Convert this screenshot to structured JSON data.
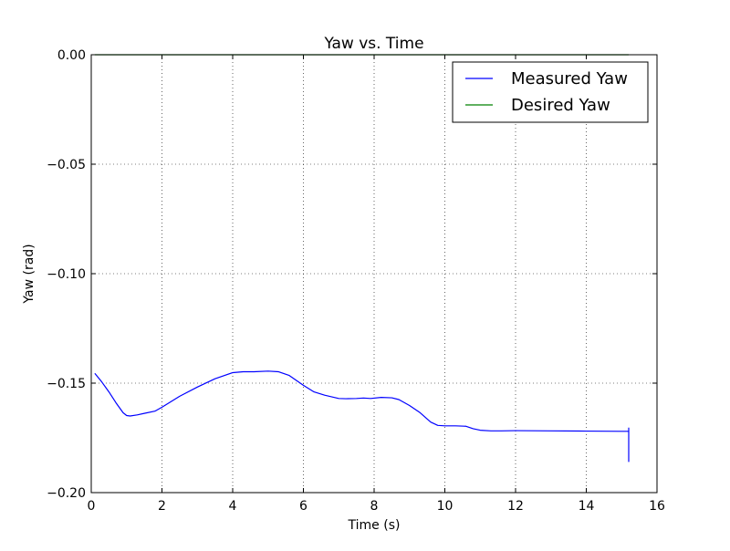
{
  "chart_data": {
    "type": "line",
    "title": "Yaw vs. Time",
    "xlabel": "Time (s)",
    "ylabel": "Yaw (rad)",
    "xlim": [
      0,
      16
    ],
    "ylim": [
      -0.2,
      0.0
    ],
    "grid": true,
    "legend_position": "top-right",
    "x_ticks": [
      0,
      2,
      4,
      6,
      8,
      10,
      12,
      14,
      16
    ],
    "x_tick_labels": [
      "0",
      "2",
      "4",
      "6",
      "8",
      "10",
      "12",
      "14",
      "16"
    ],
    "y_ticks": [
      0.0,
      -0.05,
      -0.1,
      -0.15,
      -0.2
    ],
    "y_tick_labels": [
      "0.00",
      "−0.05",
      "−0.10",
      "−0.15",
      "−0.20"
    ],
    "series": [
      {
        "name": "Measured Yaw",
        "color": "#0000ff",
        "x": [
          0.1,
          0.3,
          0.5,
          0.7,
          0.9,
          1.0,
          1.1,
          1.3,
          1.5,
          1.8,
          2.0,
          2.5,
          3.0,
          3.5,
          4.0,
          4.3,
          4.6,
          5.0,
          5.3,
          5.6,
          6.0,
          6.3,
          6.6,
          7.0,
          7.2,
          7.5,
          7.7,
          7.9,
          8.2,
          8.5,
          8.7,
          9.0,
          9.3,
          9.6,
          9.8,
          10.0,
          10.3,
          10.6,
          10.8,
          11.0,
          11.3,
          11.6,
          12.0,
          13.0,
          14.0,
          15.0,
          15.2,
          15.2,
          15.2
        ],
        "y": [
          -0.1455,
          -0.1495,
          -0.154,
          -0.159,
          -0.1635,
          -0.1648,
          -0.165,
          -0.1645,
          -0.1638,
          -0.1628,
          -0.161,
          -0.156,
          -0.1518,
          -0.148,
          -0.1452,
          -0.1448,
          -0.1448,
          -0.1445,
          -0.1448,
          -0.1465,
          -0.151,
          -0.154,
          -0.1555,
          -0.157,
          -0.1571,
          -0.157,
          -0.1568,
          -0.157,
          -0.1565,
          -0.1567,
          -0.1575,
          -0.1602,
          -0.1635,
          -0.1678,
          -0.1693,
          -0.1695,
          -0.1695,
          -0.1697,
          -0.1708,
          -0.1715,
          -0.1718,
          -0.1718,
          -0.1717,
          -0.1718,
          -0.1719,
          -0.172,
          -0.172,
          -0.1705,
          -0.186
        ]
      },
      {
        "name": "Desired Yaw",
        "color": "#008000",
        "x": [
          0.1,
          15.2
        ],
        "y": [
          0.0,
          0.0
        ]
      }
    ]
  }
}
